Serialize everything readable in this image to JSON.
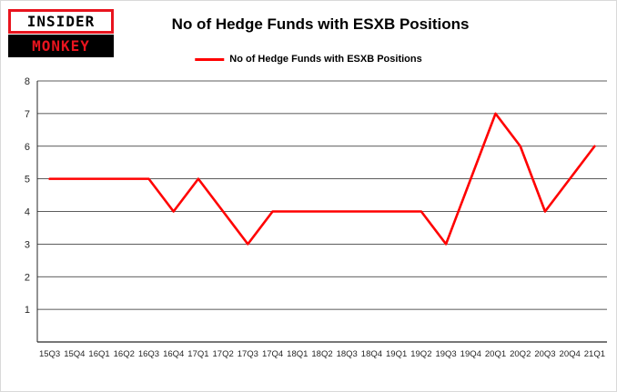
{
  "logo": {
    "line1": "INSIDER",
    "line2": "MONKEY"
  },
  "title": "No of Hedge Funds with ESXB Positions",
  "legend": {
    "label": "No of Hedge Funds with ESXB Positions",
    "color": "#ff0000"
  },
  "chart_data": {
    "type": "line",
    "title": "No of Hedge Funds with ESXB Positions",
    "categories": [
      "15Q3",
      "15Q4",
      "16Q1",
      "16Q2",
      "16Q3",
      "16Q4",
      "17Q1",
      "17Q2",
      "17Q3",
      "17Q4",
      "18Q1",
      "18Q2",
      "18Q3",
      "18Q4",
      "19Q1",
      "19Q2",
      "19Q3",
      "19Q4",
      "20Q1",
      "20Q2",
      "20Q3",
      "20Q4",
      "21Q1"
    ],
    "series": [
      {
        "name": "No of Hedge Funds with ESXB Positions",
        "color": "#ff0000",
        "values": [
          5,
          5,
          5,
          5,
          5,
          4,
          5,
          4,
          3,
          4,
          4,
          4,
          4,
          4,
          4,
          4,
          3,
          5,
          7,
          6,
          4,
          5,
          6
        ]
      }
    ],
    "xlabel": "",
    "ylabel": "",
    "ylim": [
      0,
      8
    ],
    "yticks": [
      1,
      2,
      3,
      4,
      5,
      6,
      7,
      8
    ],
    "grid": true,
    "legend_position": "top"
  }
}
